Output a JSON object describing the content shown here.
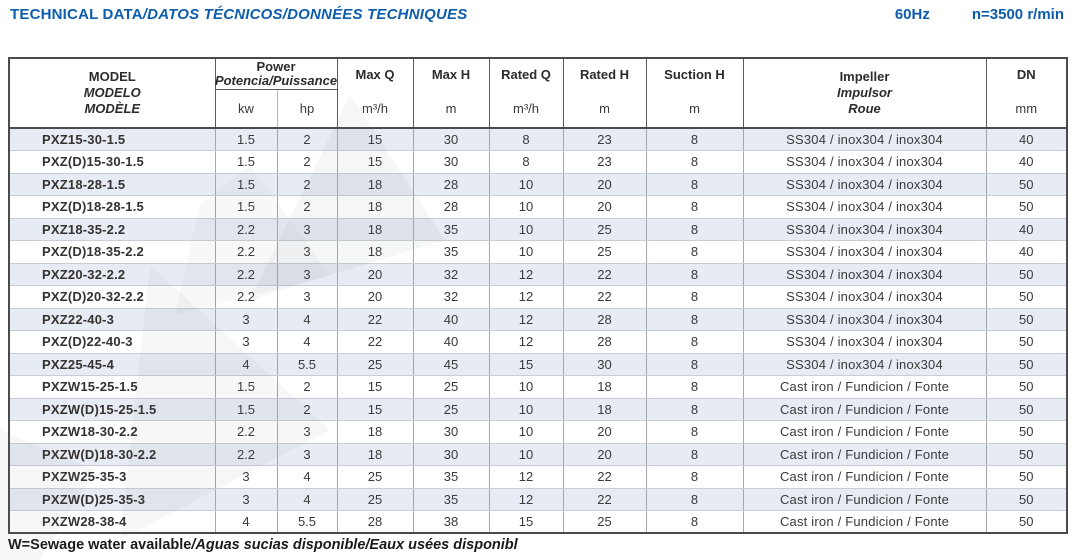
{
  "page": {
    "title_plain": "TECHNICAL DATA",
    "title_intl": "/DATOS TÉCNICOS/DONNÉES TECHNIQUES",
    "frequency": "60Hz",
    "speed": "n=3500 r/min",
    "footnote_plain": "W=Sewage water available",
    "footnote_intl": "/Aguas sucias disponible/Eaux usées disponibl",
    "accent_color": "#0d5dae",
    "row_stripe_color": "#e7ebf4"
  },
  "table": {
    "header": {
      "model": {
        "lines": [
          "MODEL",
          "MODELO",
          "MODÈLE"
        ]
      },
      "power": {
        "label": "Power",
        "sub": "Potencia/Puissance",
        "unit_kw": "kw",
        "unit_hp": "hp"
      },
      "max_q": {
        "label": "Max Q",
        "unit": "m³/h"
      },
      "max_h": {
        "label": "Max H",
        "unit": "m"
      },
      "rated_q": {
        "label": "Rated Q",
        "unit": "m³/h"
      },
      "rated_h": {
        "label": "Rated H",
        "unit": "m"
      },
      "suction_h": {
        "label": "Suction H",
        "unit": "m"
      },
      "impeller": {
        "lines": [
          "Impeller",
          "Impulsor",
          "Roue"
        ]
      },
      "dn": {
        "label": "DN",
        "unit": "mm"
      }
    },
    "rows": [
      {
        "model": "PXZ15-30-1.5",
        "kw": "1.5",
        "hp": "2",
        "max_q": "15",
        "max_h": "30",
        "rated_q": "8",
        "rated_h": "23",
        "suction_h": "8",
        "impeller": "SS304 / inox304 / inox304",
        "dn": "40"
      },
      {
        "model": "PXZ(D)15-30-1.5",
        "kw": "1.5",
        "hp": "2",
        "max_q": "15",
        "max_h": "30",
        "rated_q": "8",
        "rated_h": "23",
        "suction_h": "8",
        "impeller": "SS304 / inox304 / inox304",
        "dn": "40"
      },
      {
        "model": "PXZ18-28-1.5",
        "kw": "1.5",
        "hp": "2",
        "max_q": "18",
        "max_h": "28",
        "rated_q": "10",
        "rated_h": "20",
        "suction_h": "8",
        "impeller": "SS304 / inox304 / inox304",
        "dn": "50"
      },
      {
        "model": "PXZ(D)18-28-1.5",
        "kw": "1.5",
        "hp": "2",
        "max_q": "18",
        "max_h": "28",
        "rated_q": "10",
        "rated_h": "20",
        "suction_h": "8",
        "impeller": "SS304 / inox304 / inox304",
        "dn": "50"
      },
      {
        "model": "PXZ18-35-2.2",
        "kw": "2.2",
        "hp": "3",
        "max_q": "18",
        "max_h": "35",
        "rated_q": "10",
        "rated_h": "25",
        "suction_h": "8",
        "impeller": "SS304 / inox304 / inox304",
        "dn": "40"
      },
      {
        "model": "PXZ(D)18-35-2.2",
        "kw": "2.2",
        "hp": "3",
        "max_q": "18",
        "max_h": "35",
        "rated_q": "10",
        "rated_h": "25",
        "suction_h": "8",
        "impeller": "SS304 / inox304 / inox304",
        "dn": "40"
      },
      {
        "model": "PXZ20-32-2.2",
        "kw": "2.2",
        "hp": "3",
        "max_q": "20",
        "max_h": "32",
        "rated_q": "12",
        "rated_h": "22",
        "suction_h": "8",
        "impeller": "SS304 / inox304 / inox304",
        "dn": "50"
      },
      {
        "model": "PXZ(D)20-32-2.2",
        "kw": "2.2",
        "hp": "3",
        "max_q": "20",
        "max_h": "32",
        "rated_q": "12",
        "rated_h": "22",
        "suction_h": "8",
        "impeller": "SS304 / inox304 / inox304",
        "dn": "50"
      },
      {
        "model": "PXZ22-40-3",
        "kw": "3",
        "hp": "4",
        "max_q": "22",
        "max_h": "40",
        "rated_q": "12",
        "rated_h": "28",
        "suction_h": "8",
        "impeller": "SS304 / inox304 / inox304",
        "dn": "50"
      },
      {
        "model": "PXZ(D)22-40-3",
        "kw": "3",
        "hp": "4",
        "max_q": "22",
        "max_h": "40",
        "rated_q": "12",
        "rated_h": "28",
        "suction_h": "8",
        "impeller": "SS304 / inox304 / inox304",
        "dn": "50"
      },
      {
        "model": "PXZ25-45-4",
        "kw": "4",
        "hp": "5.5",
        "max_q": "25",
        "max_h": "45",
        "rated_q": "15",
        "rated_h": "30",
        "suction_h": "8",
        "impeller": "SS304 / inox304 / inox304",
        "dn": "50"
      },
      {
        "model": "PXZW15-25-1.5",
        "kw": "1.5",
        "hp": "2",
        "max_q": "15",
        "max_h": "25",
        "rated_q": "10",
        "rated_h": "18",
        "suction_h": "8",
        "impeller": "Cast iron / Fundicion / Fonte",
        "dn": "50"
      },
      {
        "model": "PXZW(D)15-25-1.5",
        "kw": "1.5",
        "hp": "2",
        "max_q": "15",
        "max_h": "25",
        "rated_q": "10",
        "rated_h": "18",
        "suction_h": "8",
        "impeller": "Cast iron / Fundicion / Fonte",
        "dn": "50"
      },
      {
        "model": "PXZW18-30-2.2",
        "kw": "2.2",
        "hp": "3",
        "max_q": "18",
        "max_h": "30",
        "rated_q": "10",
        "rated_h": "20",
        "suction_h": "8",
        "impeller": "Cast iron / Fundicion / Fonte",
        "dn": "50"
      },
      {
        "model": "PXZW(D)18-30-2.2",
        "kw": "2.2",
        "hp": "3",
        "max_q": "18",
        "max_h": "30",
        "rated_q": "10",
        "rated_h": "20",
        "suction_h": "8",
        "impeller": "Cast iron / Fundicion / Fonte",
        "dn": "50"
      },
      {
        "model": "PXZW25-35-3",
        "kw": "3",
        "hp": "4",
        "max_q": "25",
        "max_h": "35",
        "rated_q": "12",
        "rated_h": "22",
        "suction_h": "8",
        "impeller": "Cast iron / Fundicion / Fonte",
        "dn": "50"
      },
      {
        "model": "PXZW(D)25-35-3",
        "kw": "3",
        "hp": "4",
        "max_q": "25",
        "max_h": "35",
        "rated_q": "12",
        "rated_h": "22",
        "suction_h": "8",
        "impeller": "Cast iron / Fundicion / Fonte",
        "dn": "50"
      },
      {
        "model": "PXZW28-38-4",
        "kw": "4",
        "hp": "5.5",
        "max_q": "28",
        "max_h": "38",
        "rated_q": "15",
        "rated_h": "25",
        "suction_h": "8",
        "impeller": "Cast iron / Fundicion / Fonte",
        "dn": "50"
      }
    ]
  }
}
